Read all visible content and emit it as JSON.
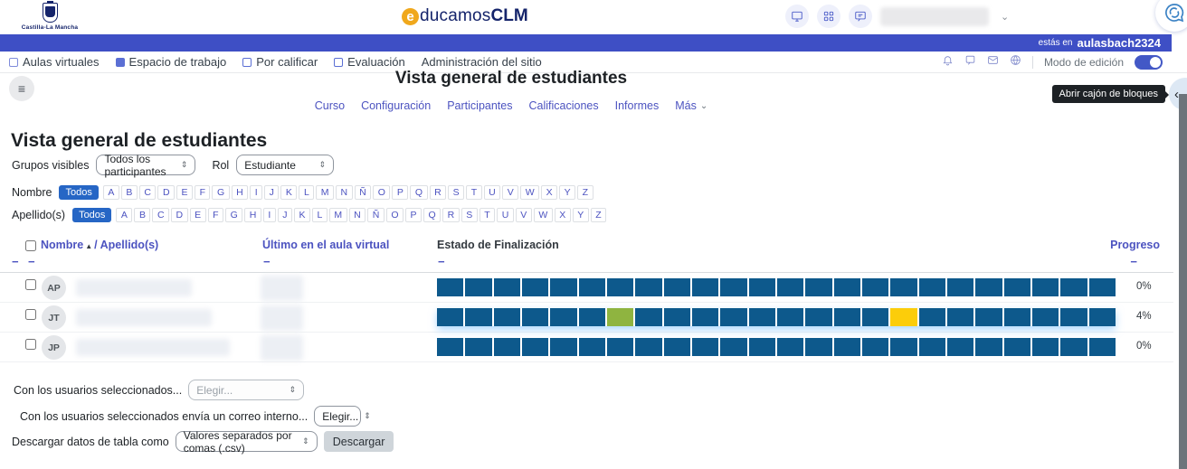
{
  "icons": {
    "select_arrows": "⇕",
    "chevron_down": "⌄",
    "chevron_left": "‹",
    "menu": "≡",
    "sort_asc": "▲"
  },
  "colors": {
    "bar_blue": "#3e4fc5",
    "navy": "#15246b",
    "gold": "#f0a81c",
    "link": "#4c53c0",
    "todos_bg": "#2666c5",
    "segment_blue": "#0d598c",
    "segment_green": "#8fb440",
    "segment_yellow": "#fccd0a"
  },
  "header": {
    "logo_text": "Castilla-La Mancha",
    "brand": {
      "e": "e",
      "name": "ducamos",
      "suffix": "CLM"
    },
    "estas_en": "estás en",
    "site_code": "aulasbach2324"
  },
  "navbar": {
    "items": [
      {
        "label": "Aulas virtuales",
        "icon": "dotted"
      },
      {
        "label": "Espacio de trabajo",
        "icon": "filled"
      },
      {
        "label": "Por calificar",
        "icon": "outline"
      },
      {
        "label": "Evaluación",
        "icon": "outline"
      },
      {
        "label": "Administración del sitio",
        "icon": ""
      }
    ],
    "edit_mode_label": "Modo de edición"
  },
  "page": {
    "title": "Vista general de estudiantes",
    "tabs": [
      {
        "label": "Curso"
      },
      {
        "label": "Configuración"
      },
      {
        "label": "Participantes"
      },
      {
        "label": "Calificaciones"
      },
      {
        "label": "Informes"
      },
      {
        "label": "Más",
        "dropdown": true
      }
    ],
    "tooltip": "Abrir cajón de bloques"
  },
  "main": {
    "heading": "Vista general de estudiantes",
    "filters": {
      "groups_label": "Grupos visibles",
      "groups_value": "Todos los participantes",
      "role_label": "Rol",
      "role_value": "Estudiante"
    },
    "name_filter_label": "Nombre",
    "surname_filter_label": "Apellido(s)",
    "all_label": "Todos",
    "letters": [
      "A",
      "B",
      "C",
      "D",
      "E",
      "F",
      "G",
      "H",
      "I",
      "J",
      "K",
      "L",
      "M",
      "N",
      "Ñ",
      "O",
      "P",
      "Q",
      "R",
      "S",
      "T",
      "U",
      "V",
      "W",
      "X",
      "Y",
      "Z"
    ]
  },
  "table": {
    "headers": {
      "name": "Nombre",
      "surname": "/ Apellido(s)",
      "last_access": "Último en el aula virtual",
      "completion": "Estado de Finalización",
      "progress": "Progreso"
    },
    "collapse_glyph": "−",
    "segments_per_bar": 24,
    "students": [
      {
        "initials": "AP",
        "progress": "0%",
        "name_blur_width": 128,
        "segment_colors": {}
      },
      {
        "initials": "JT",
        "progress": "4%",
        "name_blur_width": 150,
        "segment_colors": {
          "6": "green",
          "16": "yellow"
        },
        "glow": true
      },
      {
        "initials": "JP",
        "progress": "0%",
        "name_blur_width": 170,
        "segment_colors": {}
      }
    ]
  },
  "actions": {
    "with_selected_label": "Con los usuarios seleccionados...",
    "with_selected_value": "Elegir...",
    "send_message_label": "Con los usuarios seleccionados envía un correo interno...",
    "send_message_value": "Elegir...",
    "download_label": "Descargar datos de tabla como",
    "download_value": "Valores separados por comas (.csv)",
    "download_button": "Descargar"
  }
}
